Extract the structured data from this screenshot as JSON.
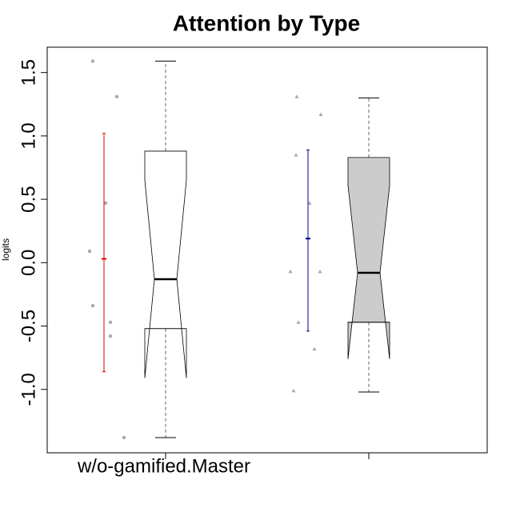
{
  "chart_data": {
    "type": "boxplot",
    "title": "Attention by Type",
    "y_label": "logits",
    "categories": [
      "w/o-gamified.Master",
      null
    ],
    "ylim": [
      -1.5,
      1.7
    ],
    "yticks": [
      {
        "value": -1,
        "label": "-1.0"
      },
      -0.5,
      {
        "value": 0,
        "label": "0.0"
      },
      0.5,
      {
        "value": 1,
        "label": "1.0"
      },
      1.5
    ],
    "boxes": [
      {
        "whisker_low": -1.38,
        "q1": -0.52,
        "median": -0.13,
        "q3": 0.88,
        "whisker_high": 1.59,
        "notch_low": -0.91,
        "notch_high": 0.65,
        "fill": "#ffffff"
      },
      {
        "whisker_low": -1.02,
        "q1": -0.47,
        "median": -0.08,
        "q3": 0.83,
        "whisker_high": 1.3,
        "notch_low": -0.76,
        "notch_high": 0.61,
        "fill": "#cccccc"
      }
    ],
    "points": [
      {
        "shape": "circle",
        "color": "#aaaaaa",
        "values": [
          1.59,
          1.31,
          0.47,
          0.09,
          -0.34,
          -0.47,
          -0.58,
          -1.38
        ]
      },
      {
        "shape": "triangle",
        "color": "#aaaaaa",
        "values": [
          1.31,
          1.17,
          0.85,
          0.47,
          -0.07,
          -0.07,
          -0.47,
          -0.68,
          -1.01
        ]
      }
    ],
    "errorbars": [
      {
        "mean": 0.03,
        "low": -0.86,
        "high": 1.02,
        "color": "#e00000"
      },
      {
        "mean": 0.19,
        "low": -0.54,
        "high": 0.89,
        "color": "#00008b"
      }
    ]
  }
}
